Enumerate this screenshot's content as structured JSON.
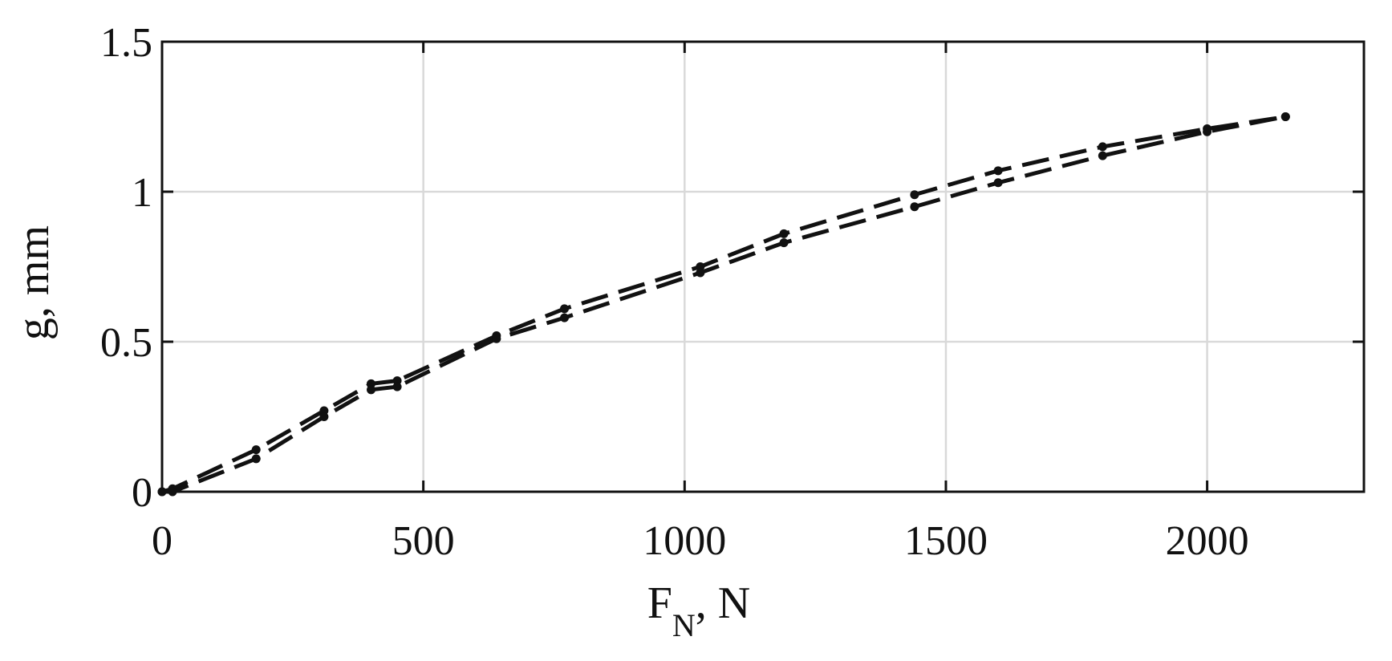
{
  "chart_data": {
    "type": "line",
    "title": "",
    "xlabel": "F",
    "xlabel_sub": "N",
    "xlabel_unit": ", N",
    "ylabel": "g, mm",
    "xlim": [
      0,
      2300
    ],
    "ylim": [
      0,
      1.5
    ],
    "xticks": [
      0,
      500,
      1000,
      1500,
      2000
    ],
    "xtick_labels": [
      "0",
      "500",
      "1000",
      "1500",
      "2000"
    ],
    "yticks": [
      0,
      0.5,
      1,
      1.5
    ],
    "ytick_labels": [
      "0",
      "0.5",
      "1",
      "1.5"
    ],
    "grid": true,
    "line_color": "#111111",
    "grid_color": "#d9d9d9",
    "series": [
      {
        "style": "dashed",
        "x": [
          0,
          20,
          180,
          310,
          400,
          450,
          640,
          770,
          1030,
          1190,
          1440,
          1600,
          1800,
          2000,
          2150
        ],
        "y": [
          0,
          0.01,
          0.14,
          0.27,
          0.36,
          0.37,
          0.52,
          0.61,
          0.75,
          0.86,
          0.99,
          1.07,
          1.15,
          1.21,
          1.25
        ]
      },
      {
        "style": "dashed",
        "x": [
          0,
          20,
          180,
          310,
          400,
          450,
          640,
          770,
          1030,
          1190,
          1440,
          1600,
          1800,
          2000,
          2150
        ],
        "y": [
          0,
          0.0,
          0.11,
          0.25,
          0.34,
          0.35,
          0.51,
          0.58,
          0.73,
          0.83,
          0.95,
          1.03,
          1.12,
          1.2,
          1.25
        ]
      }
    ]
  }
}
